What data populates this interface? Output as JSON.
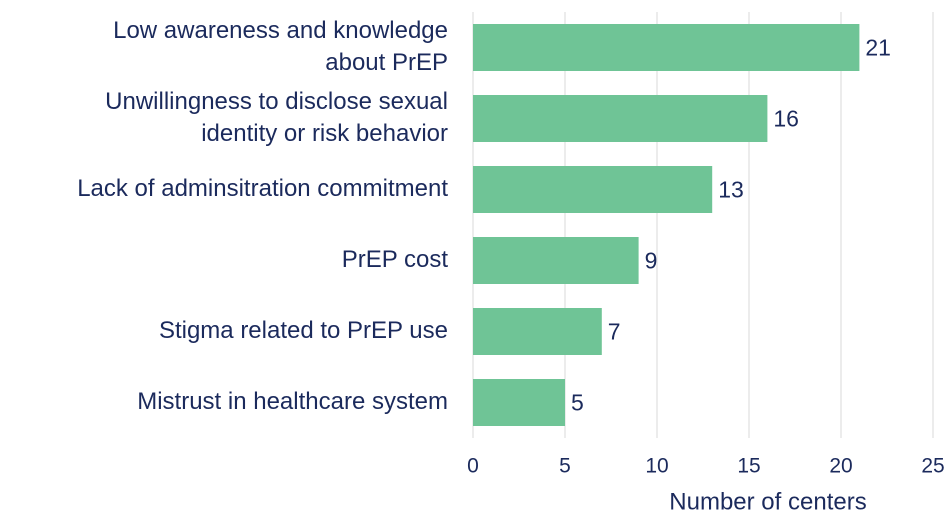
{
  "chart_data": {
    "type": "barh",
    "categories": [
      [
        "Low awareness and knowledge",
        "about PrEP"
      ],
      [
        "Unwillingness to disclose sexual",
        "identity or risk behavior"
      ],
      [
        "Lack of adminsitration commitment"
      ],
      [
        "PrEP cost"
      ],
      [
        "Stigma related to PrEP use"
      ],
      [
        "Mistrust in healthcare system"
      ]
    ],
    "values": [
      21,
      16,
      13,
      9,
      7,
      5
    ],
    "color": "#6fc496",
    "xlim": [
      0,
      25
    ],
    "xticks": [
      0,
      5,
      10,
      15,
      20,
      25
    ],
    "grid": true,
    "xlabel": "Number of centers"
  }
}
